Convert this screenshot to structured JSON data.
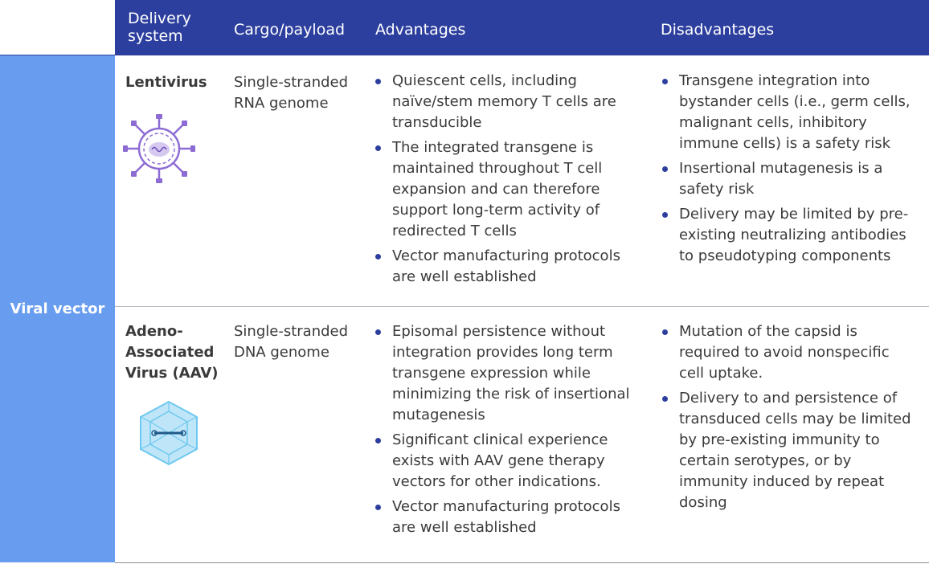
{
  "header": {
    "delivery_system": "Delivery system",
    "cargo": "Cargo/payload",
    "advantages": "Advantages",
    "disadvantages": "Disadvantages"
  },
  "category": "Viral vector",
  "rows": [
    {
      "name": "Lentivirus",
      "cargo": "Single-stranded RNA genome",
      "icon": "lentivirus-icon",
      "advantages": [
        "Quiescent cells, including naïve/stem memory T cells are transducible",
        "The integrated transgene is maintained throughout T cell expansion and can therefore support long-term activity of redirected T cells",
        "Vector manufacturing protocols are well established"
      ],
      "disadvantages": [
        "Transgene integration into bystander cells (i.e., germ cells, malignant cells, inhibitory immune cells) is a safety risk",
        "Insertional mutagenesis is a safety risk",
        "Delivery may be limited by pre-existing neutralizing antibodies to pseudotyping components"
      ]
    },
    {
      "name": "Adeno-Associated Virus (AAV)",
      "cargo": "Single-stranded DNA genome",
      "icon": "aav-capsid-icon",
      "advantages": [
        "Episomal persistence without integration provides long term transgene expression while minimizing the risk of insertional mutagenesis",
        "Significant clinical experience exists with AAV gene therapy vectors for other indications.",
        "Vector manufacturing protocols are well established"
      ],
      "disadvantages": [
        "Mutation of the capsid is required to avoid nonspecific cell uptake.",
        "Delivery to and persistence of transduced cells may be limited by pre-existing immunity to certain serotypes, or by immunity induced by repeat dosing"
      ]
    }
  ],
  "colors": {
    "header_bg": "#2d3f9e",
    "sidebar_bg": "#679cee",
    "bullet": "#2d3f9e",
    "lentivirus": "#8c6cd4",
    "aav": "#6fc8ef"
  }
}
